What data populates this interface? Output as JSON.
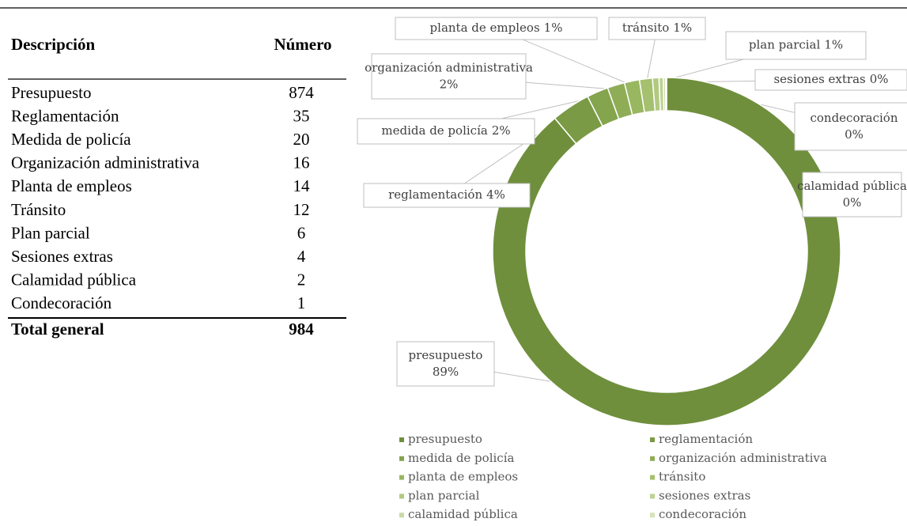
{
  "table": {
    "headers": [
      "Descripción",
      "Número"
    ],
    "rows": [
      [
        "Presupuesto",
        874
      ],
      [
        "Reglamentación",
        35
      ],
      [
        "Medida de policía",
        20
      ],
      [
        "Organización administrativa",
        16
      ],
      [
        "Planta de empleos",
        14
      ],
      [
        "Tránsito",
        12
      ],
      [
        "Plan parcial",
        6
      ],
      [
        "Sesiones extras",
        4
      ],
      [
        "Calamidad pública",
        2
      ],
      [
        "Condecoración",
        1
      ]
    ],
    "total": [
      "Total general",
      984
    ]
  },
  "chart_data": {
    "type": "pie",
    "donut": true,
    "categories": [
      "presupuesto",
      "reglamentación",
      "medida de policía",
      "organización administrativa",
      "planta de empleos",
      "tránsito",
      "plan parcial",
      "sesiones extras",
      "calamidad pública",
      "condecoración"
    ],
    "values": [
      88.8,
      3.6,
      2.0,
      1.6,
      1.4,
      1.2,
      0.6,
      0.4,
      0.2,
      0.1
    ],
    "value_labels": [
      "89%",
      "4%",
      "2%",
      "2%",
      "1%",
      "1%",
      "1%",
      "0%",
      "0%",
      "0%"
    ],
    "colors": [
      "#6f8f3c",
      "#7a9a45",
      "#84a44d",
      "#8fad56",
      "#99b761",
      "#a5c06e",
      "#b1c980",
      "#bdd292",
      "#c9daa6",
      "#d5e3b9"
    ],
    "legend": "bottom"
  }
}
